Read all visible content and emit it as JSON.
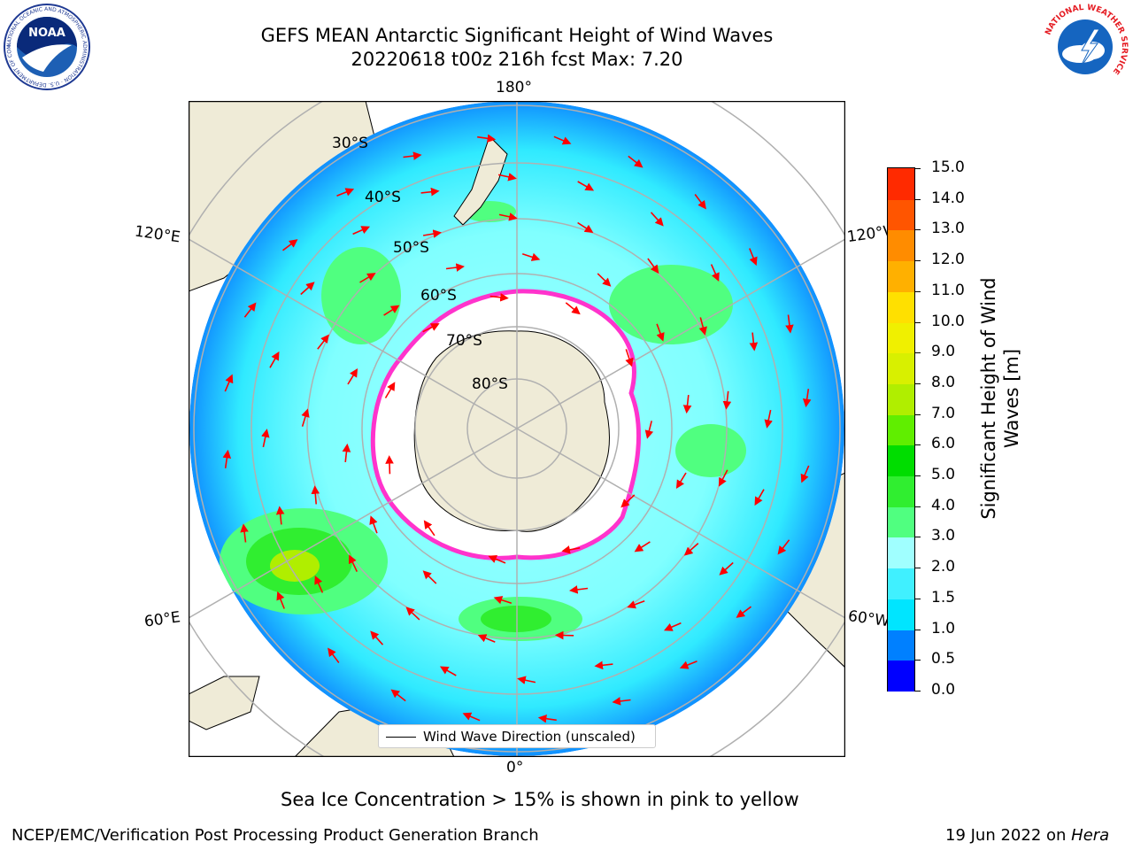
{
  "header": {
    "title_line1": "GEFS MEAN Antarctic Significant Height of Wind Waves",
    "title_line2": "20220618 t00z 216h fcst   Max: 7.20"
  },
  "logos": {
    "noaa_text": "NOAA",
    "noaa_ring_text": "NATIONAL OCEANIC AND ATMOSPHERIC ADMINISTRATION · U.S. DEPARTMENT OF COMMERCE",
    "nws_ring_text": "NATIONAL WEATHER SERVICE"
  },
  "map": {
    "projection": "south-polar-stereographic",
    "lon_labels": {
      "top": "180°",
      "bottom": "0°",
      "left_upper": "120°E",
      "left_lower": "60°E",
      "right_upper": "120°W",
      "right_lower": "60°W"
    },
    "lat_labels": [
      "30°S",
      "40°S",
      "50°S",
      "60°S",
      "70°S",
      "80°S"
    ],
    "colors": {
      "land": "#efebd7",
      "ice_free_ocean_base": "#80ffff",
      "sea_ice_edge": "#ff33cc",
      "arrow": "#ff0000",
      "grid": "#b0b0b0"
    }
  },
  "legend": {
    "label": "Wind Wave Direction (unscaled)"
  },
  "colorbar": {
    "label": "Significant Height of Wind Waves [m]",
    "label_line1": "Significant Height of Wind",
    "label_line2": "Waves [m]",
    "ticks": [
      "0.0",
      "0.5",
      "1.0",
      "1.5",
      "2.0",
      "3.0",
      "4.0",
      "5.0",
      "6.0",
      "7.0",
      "8.0",
      "9.0",
      "10.0",
      "11.0",
      "12.0",
      "13.0",
      "14.0",
      "15.0"
    ],
    "colors": [
      "#0000ff",
      "#0080ff",
      "#00e5ff",
      "#40f0ff",
      "#a0ffff",
      "#50ff80",
      "#30ee30",
      "#00dd00",
      "#60ee00",
      "#b0ee00",
      "#d8f000",
      "#f0f000",
      "#ffe000",
      "#ffb000",
      "#ff8c00",
      "#ff5500",
      "#ff2a00"
    ]
  },
  "notes": {
    "sea_ice": "Sea Ice Concentration > 15% is shown in pink to yellow"
  },
  "footer": {
    "left": "NCEP/EMC/Verification Post Processing Product Generation Branch",
    "right_date": "19 Jun 2022 on ",
    "right_host": "Hera"
  }
}
